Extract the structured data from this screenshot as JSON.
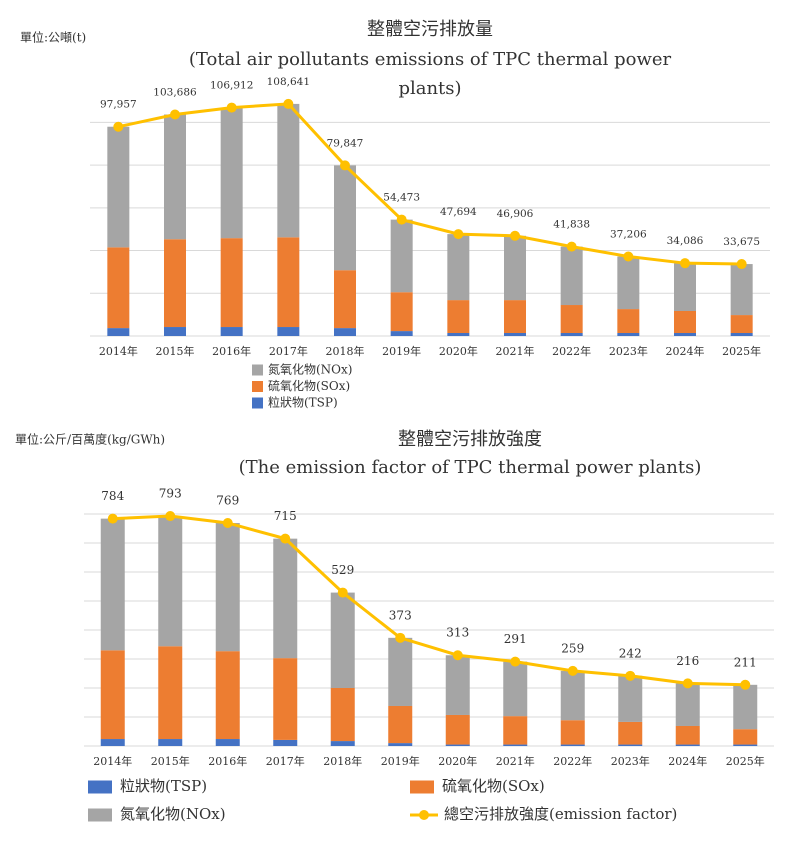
{
  "chart_data": [
    {
      "type": "stacked-bar-line",
      "unit": "單位:公噸(t)",
      "title": "整體空污排放量",
      "subtitle_lines": [
        "(Total air pollutants emissions of TPC thermal power",
        "plants)"
      ],
      "categories": [
        "2014年",
        "2015年",
        "2016年",
        "2017年",
        "2018年",
        "2019年",
        "2020年",
        "2021年",
        "2022年",
        "2023年",
        "2024年",
        "2025年"
      ],
      "series": [
        {
          "name": "粒狀物(TSP)",
          "color": "#4472c4",
          "values": [
            3700,
            4200,
            4200,
            4200,
            3700,
            2300,
            1400,
            1400,
            1400,
            1400,
            1400,
            1400
          ]
        },
        {
          "name": "硫氧化物(SOx)",
          "color": "#ed7d31",
          "values": [
            37800,
            41100,
            41600,
            42000,
            27100,
            18200,
            15400,
            15400,
            13100,
            11200,
            10300,
            8400
          ]
        },
        {
          "name": "氮氧化物(NOx)",
          "color": "#a5a5a5",
          "values": [
            56457,
            58386,
            61112,
            62441,
            49047,
            33973,
            30894,
            30106,
            27338,
            24606,
            22386,
            23875
          ]
        }
      ],
      "line": {
        "color": "#ffc000",
        "values": [
          97957,
          103686,
          106912,
          108641,
          79847,
          54473,
          47694,
          46906,
          41838,
          37206,
          34086,
          33675
        ],
        "value_labels": [
          "97,957",
          "103,686",
          "106,912",
          "108,641",
          "79,847",
          "54,473",
          "47,694",
          "46,906",
          "41,838",
          "37,206",
          "34,086",
          "33,675"
        ]
      },
      "ylim": [
        0,
        110000
      ],
      "grid_values": [
        0,
        20000,
        40000,
        60000,
        80000,
        100000
      ],
      "grid": true,
      "legend_reversed": true
    },
    {
      "type": "stacked-bar-line",
      "unit": "單位:公斤/百萬度(kg/GWh)",
      "title": "整體空污排放強度",
      "subtitle_lines": [
        "(The emission factor of TPC thermal power plants)"
      ],
      "categories": [
        "2014年",
        "2015年",
        "2016年",
        "2017年",
        "2018年",
        "2019年",
        "2020年",
        "2021年",
        "2022年",
        "2023年",
        "2024年",
        "2025年"
      ],
      "series": [
        {
          "name": "粒狀物(TSP)",
          "color": "#4472c4",
          "values": [
            24,
            24,
            24,
            21,
            17,
            10,
            5,
            5,
            5,
            5,
            5,
            5
          ]
        },
        {
          "name": "硫氧化物(SOx)",
          "color": "#ed7d31",
          "values": [
            306,
            320,
            303,
            282,
            183,
            128,
            102,
            98,
            84,
            78,
            64,
            53
          ]
        },
        {
          "name": "氮氧化物(NOx)",
          "color": "#a5a5a5",
          "values": [
            454,
            449,
            442,
            412,
            329,
            235,
            206,
            188,
            170,
            159,
            147,
            153
          ]
        }
      ],
      "line": {
        "name": "總空污排放強度(emission factor)",
        "color": "#ffc000",
        "values": [
          784,
          793,
          769,
          715,
          529,
          373,
          313,
          291,
          259,
          242,
          216,
          211
        ]
      },
      "ylim": [
        0,
        800
      ],
      "grid_values": [
        0,
        100,
        200,
        300,
        400,
        500,
        600,
        700,
        800
      ],
      "grid": true,
      "legend_reversed": false
    }
  ]
}
